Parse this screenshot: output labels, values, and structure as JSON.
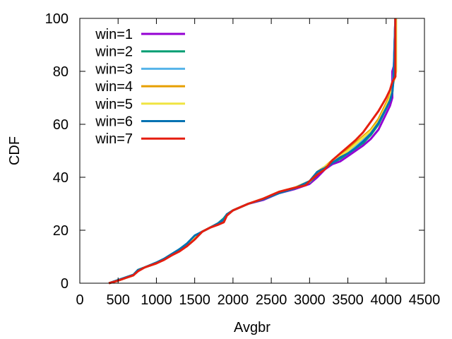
{
  "chart_data": {
    "type": "line",
    "xlabel": "Avgbr",
    "ylabel": "CDF",
    "xlim": [
      0,
      4500
    ],
    "ylim": [
      0,
      100
    ],
    "xticks": [
      0,
      500,
      1000,
      1500,
      2000,
      2500,
      3000,
      3500,
      4000,
      4500
    ],
    "yticks": [
      0,
      20,
      40,
      60,
      80,
      100
    ],
    "xtick_labels": [
      "0",
      "500",
      "1000",
      "1500",
      "2000",
      "2500",
      "3000",
      "3500",
      "4000",
      "4500"
    ],
    "ytick_labels": [
      "0",
      "20",
      "40",
      "60",
      "80",
      "100"
    ],
    "grid": false,
    "legend_position": "top-left",
    "series": [
      {
        "name": "win=1",
        "color": "#9400d3",
        "points": [
          [
            380,
            0
          ],
          [
            500,
            1
          ],
          [
            600,
            2
          ],
          [
            700,
            3
          ],
          [
            760,
            5
          ],
          [
            850,
            6
          ],
          [
            1000,
            7.5
          ],
          [
            1100,
            9
          ],
          [
            1200,
            11
          ],
          [
            1300,
            12.5
          ],
          [
            1400,
            14
          ],
          [
            1500,
            17.5
          ],
          [
            1600,
            19.5
          ],
          [
            1700,
            21
          ],
          [
            1800,
            22.5
          ],
          [
            1880,
            23.5
          ],
          [
            1920,
            26
          ],
          [
            2000,
            27.5
          ],
          [
            2200,
            30
          ],
          [
            2400,
            31.5
          ],
          [
            2600,
            34
          ],
          [
            2800,
            35.5
          ],
          [
            3000,
            37.5
          ],
          [
            3100,
            40
          ],
          [
            3200,
            43
          ],
          [
            3300,
            45
          ],
          [
            3400,
            46
          ],
          [
            3500,
            48
          ],
          [
            3600,
            50
          ],
          [
            3700,
            52
          ],
          [
            3800,
            54.5
          ],
          [
            3900,
            58
          ],
          [
            4000,
            64
          ],
          [
            4050,
            67
          ],
          [
            4080,
            70
          ],
          [
            4080,
            80
          ],
          [
            4100,
            82
          ],
          [
            4120,
            100
          ]
        ]
      },
      {
        "name": "win=2",
        "color": "#009e73",
        "points": [
          [
            380,
            0
          ],
          [
            500,
            1.2
          ],
          [
            600,
            2.2
          ],
          [
            700,
            3.2
          ],
          [
            760,
            5
          ],
          [
            850,
            6
          ],
          [
            1000,
            7.8
          ],
          [
            1100,
            9.2
          ],
          [
            1200,
            11
          ],
          [
            1300,
            12.8
          ],
          [
            1400,
            14.5
          ],
          [
            1500,
            17.8
          ],
          [
            1600,
            19.5
          ],
          [
            1700,
            21
          ],
          [
            1800,
            22.5
          ],
          [
            1880,
            24.5
          ],
          [
            1920,
            26
          ],
          [
            2000,
            27.5
          ],
          [
            2200,
            30
          ],
          [
            2400,
            31.8
          ],
          [
            2600,
            34
          ],
          [
            2800,
            35.8
          ],
          [
            3000,
            38
          ],
          [
            3100,
            41
          ],
          [
            3200,
            43.5
          ],
          [
            3300,
            45.5
          ],
          [
            3400,
            47
          ],
          [
            3500,
            49
          ],
          [
            3600,
            51
          ],
          [
            3700,
            53
          ],
          [
            3800,
            56
          ],
          [
            3900,
            60
          ],
          [
            4000,
            66
          ],
          [
            4050,
            69
          ],
          [
            4080,
            72
          ],
          [
            4100,
            80
          ],
          [
            4120,
            100
          ]
        ]
      },
      {
        "name": "win=3",
        "color": "#56b4e9",
        "points": [
          [
            380,
            0
          ],
          [
            500,
            1.2
          ],
          [
            600,
            2.2
          ],
          [
            700,
            3.2
          ],
          [
            760,
            5
          ],
          [
            850,
            6
          ],
          [
            1000,
            7.8
          ],
          [
            1100,
            9.2
          ],
          [
            1200,
            11
          ],
          [
            1300,
            12.8
          ],
          [
            1400,
            15
          ],
          [
            1500,
            17.8
          ],
          [
            1600,
            19.5
          ],
          [
            1700,
            21
          ],
          [
            1800,
            22.5
          ],
          [
            1880,
            24
          ],
          [
            1920,
            26
          ],
          [
            2000,
            27.5
          ],
          [
            2200,
            30
          ],
          [
            2400,
            31.8
          ],
          [
            2600,
            34
          ],
          [
            2800,
            35.8
          ],
          [
            3000,
            38.2
          ],
          [
            3100,
            41.5
          ],
          [
            3200,
            43.5
          ],
          [
            3300,
            45.5
          ],
          [
            3400,
            47.5
          ],
          [
            3500,
            49.5
          ],
          [
            3600,
            51.5
          ],
          [
            3700,
            54
          ],
          [
            3800,
            57
          ],
          [
            3900,
            61
          ],
          [
            4000,
            67
          ],
          [
            4050,
            70
          ],
          [
            4080,
            73
          ],
          [
            4100,
            80
          ],
          [
            4120,
            100
          ]
        ]
      },
      {
        "name": "win=4",
        "color": "#e69f00",
        "points": [
          [
            380,
            0
          ],
          [
            500,
            1
          ],
          [
            600,
            2
          ],
          [
            700,
            3
          ],
          [
            760,
            5
          ],
          [
            850,
            6
          ],
          [
            1000,
            7.5
          ],
          [
            1100,
            9
          ],
          [
            1200,
            11
          ],
          [
            1300,
            12.5
          ],
          [
            1400,
            14.5
          ],
          [
            1500,
            17.5
          ],
          [
            1600,
            19.5
          ],
          [
            1700,
            21
          ],
          [
            1800,
            22.5
          ],
          [
            1880,
            23.5
          ],
          [
            1920,
            26
          ],
          [
            2000,
            27.5
          ],
          [
            2200,
            30
          ],
          [
            2400,
            32
          ],
          [
            2600,
            34.5
          ],
          [
            2800,
            36
          ],
          [
            3000,
            38.5
          ],
          [
            3100,
            42
          ],
          [
            3200,
            44
          ],
          [
            3300,
            46.5
          ],
          [
            3400,
            48.5
          ],
          [
            3500,
            50.5
          ],
          [
            3600,
            53
          ],
          [
            3700,
            55.5
          ],
          [
            3800,
            58
          ],
          [
            3900,
            62
          ],
          [
            4000,
            68
          ],
          [
            4050,
            71
          ],
          [
            4080,
            75
          ],
          [
            4120,
            78
          ],
          [
            4120,
            100
          ]
        ]
      },
      {
        "name": "win=5",
        "color": "#f0e442",
        "points": [
          [
            380,
            0
          ],
          [
            500,
            1
          ],
          [
            600,
            2
          ],
          [
            700,
            3
          ],
          [
            760,
            5
          ],
          [
            850,
            6
          ],
          [
            1000,
            7.5
          ],
          [
            1100,
            9
          ],
          [
            1200,
            11
          ],
          [
            1300,
            12.5
          ],
          [
            1400,
            14.5
          ],
          [
            1500,
            17.5
          ],
          [
            1600,
            19.5
          ],
          [
            1700,
            21
          ],
          [
            1800,
            22.5
          ],
          [
            1880,
            23.5
          ],
          [
            1920,
            26
          ],
          [
            2000,
            27.5
          ],
          [
            2200,
            30
          ],
          [
            2400,
            32
          ],
          [
            2600,
            34.5
          ],
          [
            2800,
            36
          ],
          [
            3000,
            38.5
          ],
          [
            3100,
            41.5
          ],
          [
            3200,
            44
          ],
          [
            3300,
            46
          ],
          [
            3400,
            48
          ],
          [
            3500,
            50
          ],
          [
            3600,
            52.5
          ],
          [
            3700,
            55
          ],
          [
            3800,
            57.5
          ],
          [
            3900,
            61
          ],
          [
            4000,
            67
          ],
          [
            4050,
            70
          ],
          [
            4080,
            74
          ],
          [
            4130,
            80
          ],
          [
            4130,
            100
          ]
        ]
      },
      {
        "name": "win=6",
        "color": "#0072b2",
        "points": [
          [
            380,
            0
          ],
          [
            500,
            1.2
          ],
          [
            600,
            2.2
          ],
          [
            700,
            3.2
          ],
          [
            760,
            5
          ],
          [
            850,
            6
          ],
          [
            1000,
            7.8
          ],
          [
            1100,
            9.2
          ],
          [
            1200,
            11
          ],
          [
            1300,
            12.8
          ],
          [
            1400,
            15
          ],
          [
            1500,
            18
          ],
          [
            1600,
            19.5
          ],
          [
            1700,
            21
          ],
          [
            1800,
            22.5
          ],
          [
            1880,
            24
          ],
          [
            1920,
            26
          ],
          [
            2000,
            27.5
          ],
          [
            2200,
            30
          ],
          [
            2400,
            31.8
          ],
          [
            2600,
            34
          ],
          [
            2800,
            35.8
          ],
          [
            3000,
            38.5
          ],
          [
            3100,
            42
          ],
          [
            3200,
            43.5
          ],
          [
            3300,
            45.5
          ],
          [
            3400,
            47.5
          ],
          [
            3500,
            49
          ],
          [
            3600,
            51
          ],
          [
            3700,
            53.5
          ],
          [
            3800,
            56.5
          ],
          [
            3900,
            60.5
          ],
          [
            4000,
            66
          ],
          [
            4050,
            69
          ],
          [
            4080,
            72
          ],
          [
            4100,
            78
          ],
          [
            4120,
            100
          ]
        ]
      },
      {
        "name": "win=7",
        "color": "#e51e10",
        "points": [
          [
            380,
            0
          ],
          [
            500,
            1
          ],
          [
            600,
            2
          ],
          [
            700,
            3
          ],
          [
            760,
            4.5
          ],
          [
            850,
            6
          ],
          [
            1000,
            7.5
          ],
          [
            1100,
            8.8
          ],
          [
            1200,
            10.5
          ],
          [
            1300,
            12
          ],
          [
            1400,
            14
          ],
          [
            1500,
            16.5
          ],
          [
            1600,
            19.5
          ],
          [
            1700,
            21
          ],
          [
            1800,
            22
          ],
          [
            1880,
            23
          ],
          [
            1920,
            25.5
          ],
          [
            2000,
            27.5
          ],
          [
            2200,
            30
          ],
          [
            2400,
            32
          ],
          [
            2600,
            34.5
          ],
          [
            2800,
            36
          ],
          [
            2950,
            37
          ],
          [
            3000,
            38.5
          ],
          [
            3100,
            41
          ],
          [
            3200,
            43
          ],
          [
            3300,
            46.5
          ],
          [
            3400,
            49
          ],
          [
            3500,
            51.5
          ],
          [
            3600,
            54
          ],
          [
            3700,
            57
          ],
          [
            3800,
            61
          ],
          [
            3900,
            65
          ],
          [
            4000,
            70
          ],
          [
            4050,
            73
          ],
          [
            4080,
            76
          ],
          [
            4120,
            78
          ],
          [
            4120,
            100
          ]
        ]
      }
    ]
  }
}
